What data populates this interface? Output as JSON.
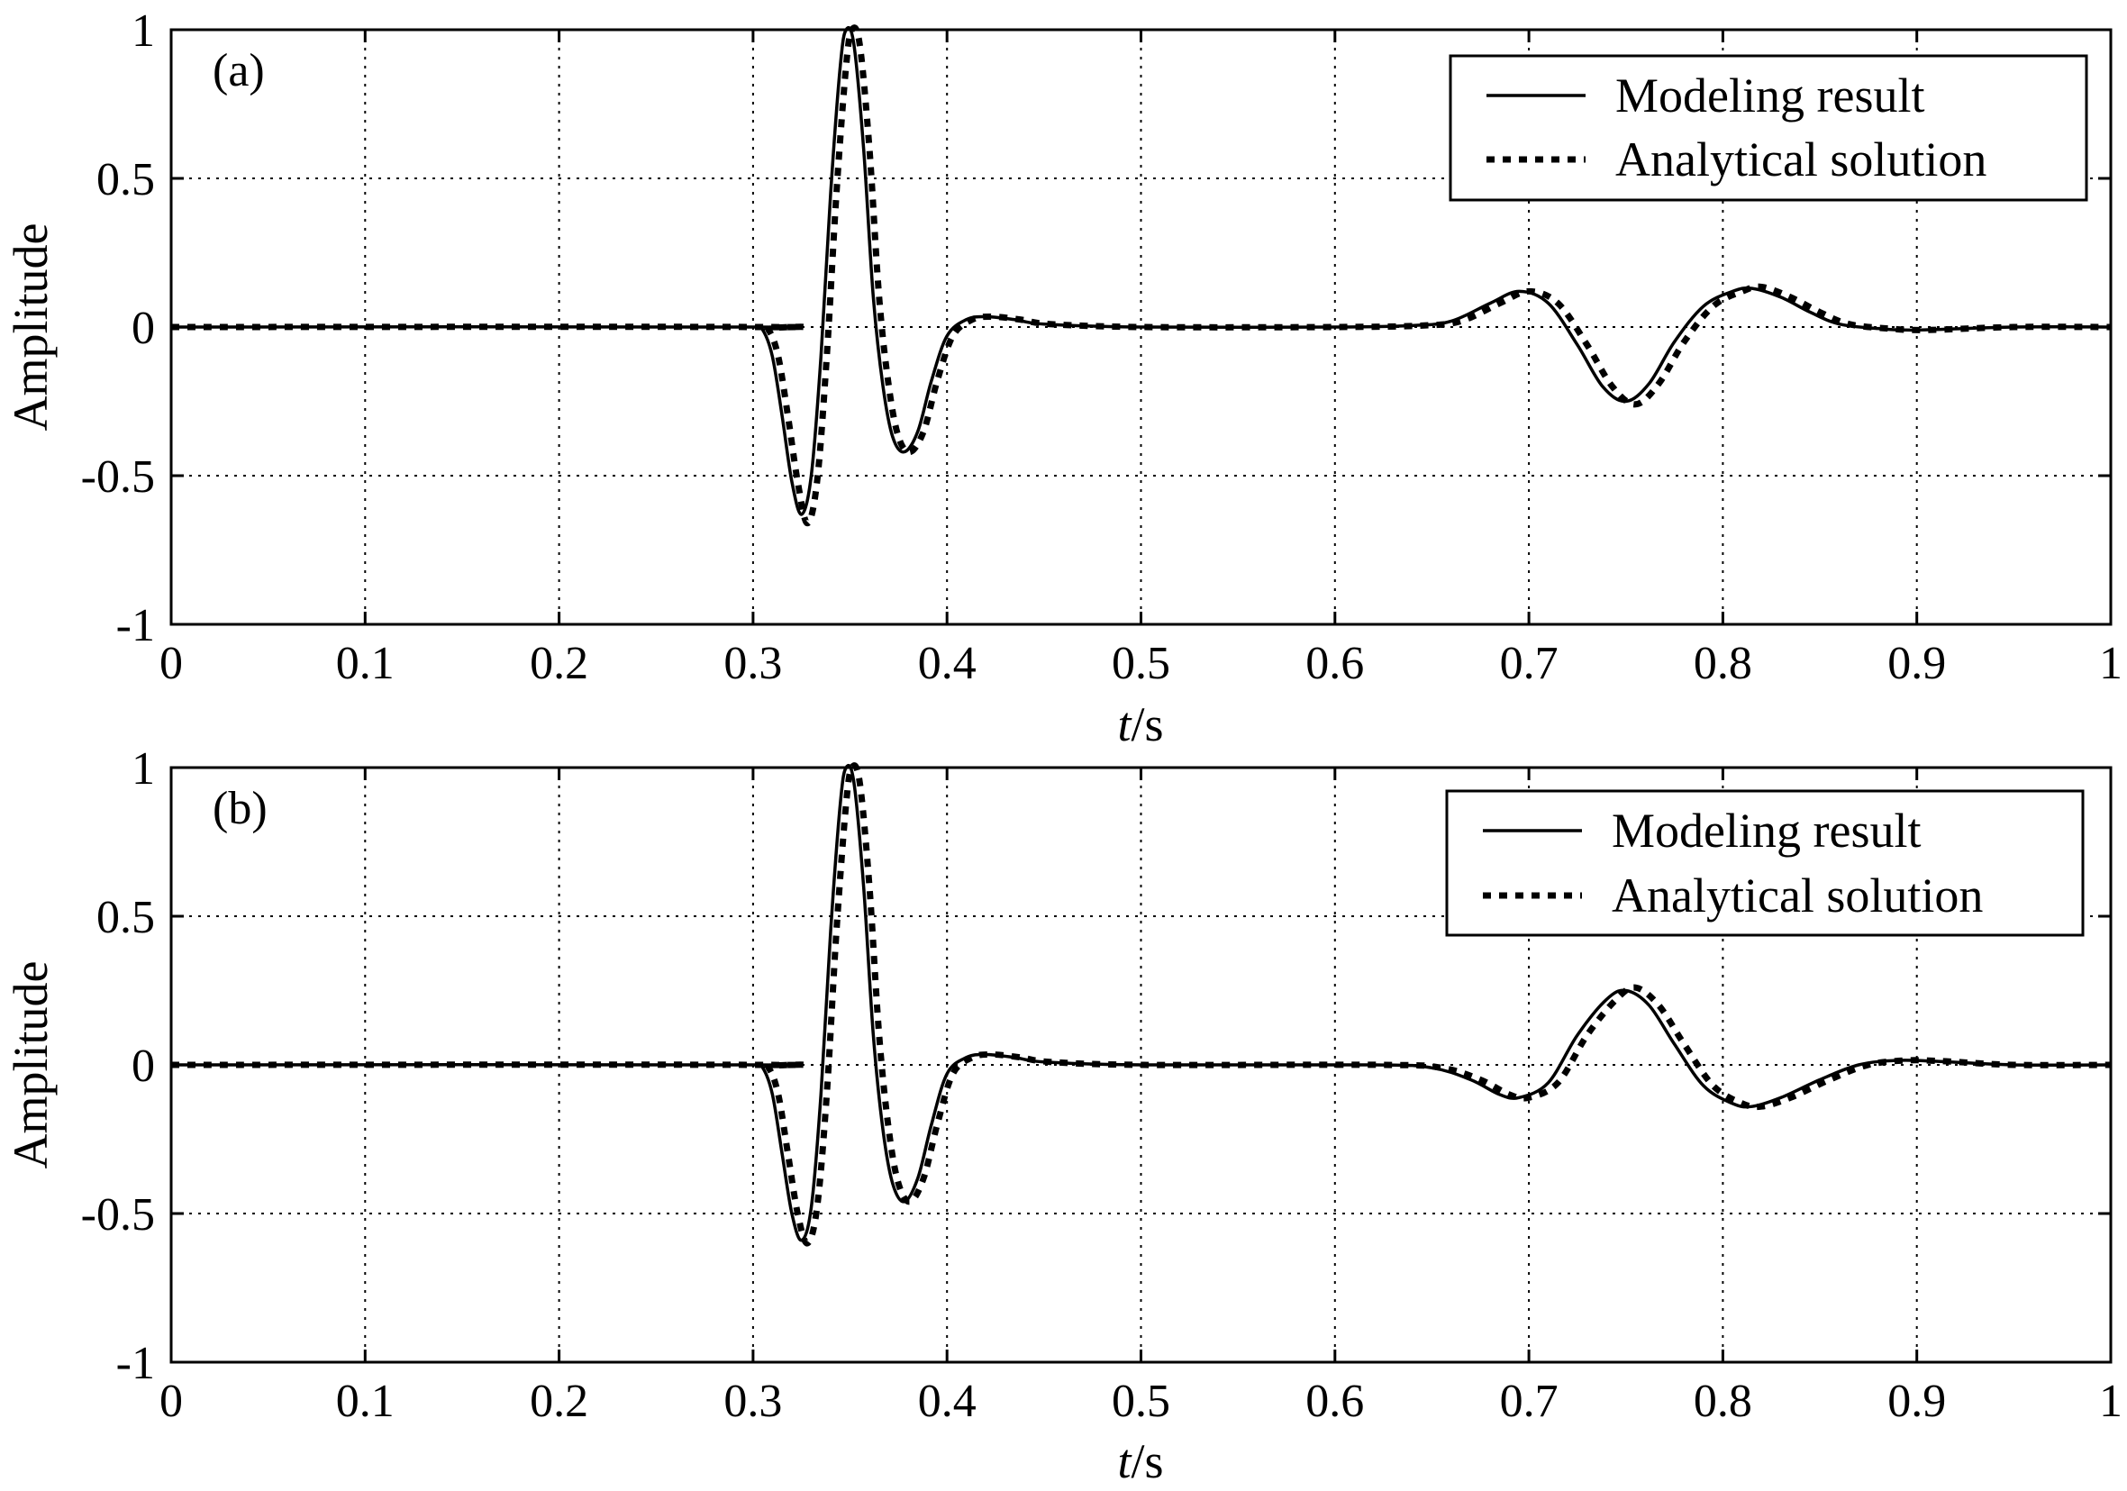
{
  "chart_data": [
    {
      "type": "line",
      "panel_label": "(a)",
      "xlabel_italic": "t",
      "xlabel_unit": "/s",
      "ylabel": "Amplitude",
      "xlim": [
        0,
        1
      ],
      "ylim": [
        -1,
        1
      ],
      "x_ticks": [
        0,
        0.1,
        0.2,
        0.3,
        0.4,
        0.5,
        0.6,
        0.7,
        0.8,
        0.9,
        1
      ],
      "x_tick_labels": [
        "0",
        "0.1",
        "0.2",
        "0.3",
        "0.4",
        "0.5",
        "0.6",
        "0.7",
        "0.8",
        "0.9",
        "1"
      ],
      "y_ticks": [
        -1,
        -0.5,
        0,
        0.5,
        1
      ],
      "y_tick_labels": [
        "-1",
        "-0.5",
        "0",
        "0.5",
        "1"
      ],
      "grid": true,
      "legend_position": "top-right",
      "series": [
        {
          "name": "Modeling result",
          "style": "solid",
          "points": [
            [
              0,
              0
            ],
            [
              0.3,
              0
            ],
            [
              0.305,
              -0.01
            ],
            [
              0.31,
              -0.1
            ],
            [
              0.315,
              -0.3
            ],
            [
              0.32,
              -0.52
            ],
            [
              0.325,
              -0.63
            ],
            [
              0.33,
              -0.5
            ],
            [
              0.335,
              -0.1
            ],
            [
              0.34,
              0.45
            ],
            [
              0.345,
              0.88
            ],
            [
              0.348,
              1.0
            ],
            [
              0.352,
              0.95
            ],
            [
              0.357,
              0.6
            ],
            [
              0.362,
              0.1
            ],
            [
              0.367,
              -0.2
            ],
            [
              0.372,
              -0.37
            ],
            [
              0.378,
              -0.42
            ],
            [
              0.385,
              -0.35
            ],
            [
              0.392,
              -0.18
            ],
            [
              0.4,
              -0.03
            ],
            [
              0.41,
              0.025
            ],
            [
              0.42,
              0.035
            ],
            [
              0.435,
              0.025
            ],
            [
              0.45,
              0.01
            ],
            [
              0.5,
              0
            ],
            [
              0.6,
              0
            ],
            [
              0.64,
              0.005
            ],
            [
              0.66,
              0.02
            ],
            [
              0.68,
              0.08
            ],
            [
              0.695,
              0.12
            ],
            [
              0.71,
              0.08
            ],
            [
              0.725,
              -0.06
            ],
            [
              0.738,
              -0.2
            ],
            [
              0.75,
              -0.25
            ],
            [
              0.762,
              -0.19
            ],
            [
              0.775,
              -0.05
            ],
            [
              0.79,
              0.07
            ],
            [
              0.805,
              0.12
            ],
            [
              0.815,
              0.13
            ],
            [
              0.83,
              0.1
            ],
            [
              0.845,
              0.05
            ],
            [
              0.86,
              0.01
            ],
            [
              0.88,
              -0.005
            ],
            [
              0.9,
              -0.01
            ],
            [
              0.95,
              0
            ],
            [
              1,
              0
            ]
          ]
        },
        {
          "name": "Analytical solution",
          "style": "dotted",
          "points": [
            [
              0,
              0
            ],
            [
              0.302,
              0
            ],
            [
              0.308,
              -0.01
            ],
            [
              0.313,
              -0.1
            ],
            [
              0.318,
              -0.3
            ],
            [
              0.323,
              -0.52
            ],
            [
              0.328,
              -0.66
            ],
            [
              0.333,
              -0.52
            ],
            [
              0.338,
              -0.1
            ],
            [
              0.343,
              0.45
            ],
            [
              0.348,
              0.88
            ],
            [
              0.351,
              1.0
            ],
            [
              0.355,
              0.95
            ],
            [
              0.36,
              0.6
            ],
            [
              0.365,
              0.1
            ],
            [
              0.37,
              -0.2
            ],
            [
              0.375,
              -0.37
            ],
            [
              0.381,
              -0.42
            ],
            [
              0.388,
              -0.35
            ],
            [
              0.395,
              -0.18
            ],
            [
              0.403,
              -0.03
            ],
            [
              0.413,
              0.025
            ],
            [
              0.423,
              0.035
            ],
            [
              0.438,
              0.025
            ],
            [
              0.453,
              0.01
            ],
            [
              0.5,
              0
            ],
            [
              0.6,
              0
            ],
            [
              0.645,
              0.005
            ],
            [
              0.665,
              0.02
            ],
            [
              0.685,
              0.08
            ],
            [
              0.7,
              0.12
            ],
            [
              0.715,
              0.08
            ],
            [
              0.73,
              -0.06
            ],
            [
              0.743,
              -0.2
            ],
            [
              0.755,
              -0.26
            ],
            [
              0.767,
              -0.19
            ],
            [
              0.78,
              -0.05
            ],
            [
              0.795,
              0.07
            ],
            [
              0.81,
              0.12
            ],
            [
              0.82,
              0.135
            ],
            [
              0.835,
              0.1
            ],
            [
              0.85,
              0.05
            ],
            [
              0.865,
              0.01
            ],
            [
              0.885,
              -0.005
            ],
            [
              0.905,
              -0.01
            ],
            [
              0.95,
              0
            ],
            [
              1,
              0
            ]
          ]
        }
      ]
    },
    {
      "type": "line",
      "panel_label": "(b)",
      "xlabel_italic": "t",
      "xlabel_unit": "/s",
      "ylabel": "Amplitude",
      "xlim": [
        0,
        1
      ],
      "ylim": [
        -1,
        1
      ],
      "x_ticks": [
        0,
        0.1,
        0.2,
        0.3,
        0.4,
        0.5,
        0.6,
        0.7,
        0.8,
        0.9,
        1
      ],
      "x_tick_labels": [
        "0",
        "0.1",
        "0.2",
        "0.3",
        "0.4",
        "0.5",
        "0.6",
        "0.7",
        "0.8",
        "0.9",
        "1"
      ],
      "y_ticks": [
        -1,
        -0.5,
        0,
        0.5,
        1
      ],
      "y_tick_labels": [
        "-1",
        "-0.5",
        "0",
        "0.5",
        "1"
      ],
      "grid": true,
      "legend_position": "top-right",
      "series": [
        {
          "name": "Modeling result",
          "style": "solid",
          "points": [
            [
              0,
              0
            ],
            [
              0.3,
              0
            ],
            [
              0.305,
              -0.01
            ],
            [
              0.31,
              -0.1
            ],
            [
              0.315,
              -0.3
            ],
            [
              0.32,
              -0.5
            ],
            [
              0.325,
              -0.59
            ],
            [
              0.33,
              -0.48
            ],
            [
              0.335,
              -0.1
            ],
            [
              0.34,
              0.45
            ],
            [
              0.345,
              0.88
            ],
            [
              0.348,
              1.0
            ],
            [
              0.352,
              0.95
            ],
            [
              0.357,
              0.6
            ],
            [
              0.362,
              0.1
            ],
            [
              0.367,
              -0.22
            ],
            [
              0.372,
              -0.4
            ],
            [
              0.378,
              -0.46
            ],
            [
              0.385,
              -0.38
            ],
            [
              0.392,
              -0.2
            ],
            [
              0.4,
              -0.03
            ],
            [
              0.41,
              0.025
            ],
            [
              0.42,
              0.035
            ],
            [
              0.435,
              0.025
            ],
            [
              0.45,
              0.01
            ],
            [
              0.5,
              0
            ],
            [
              0.62,
              0
            ],
            [
              0.65,
              -0.01
            ],
            [
              0.67,
              -0.05
            ],
            [
              0.685,
              -0.1
            ],
            [
              0.695,
              -0.11
            ],
            [
              0.71,
              -0.06
            ],
            [
              0.725,
              0.1
            ],
            [
              0.74,
              0.22
            ],
            [
              0.75,
              0.25
            ],
            [
              0.762,
              0.2
            ],
            [
              0.775,
              0.07
            ],
            [
              0.79,
              -0.07
            ],
            [
              0.805,
              -0.13
            ],
            [
              0.815,
              -0.14
            ],
            [
              0.83,
              -0.11
            ],
            [
              0.85,
              -0.05
            ],
            [
              0.87,
              0
            ],
            [
              0.89,
              0.015
            ],
            [
              0.91,
              0.012
            ],
            [
              0.95,
              0
            ],
            [
              1,
              0
            ]
          ]
        },
        {
          "name": "Analytical solution",
          "style": "dotted",
          "points": [
            [
              0,
              0
            ],
            [
              0.302,
              0
            ],
            [
              0.308,
              -0.01
            ],
            [
              0.313,
              -0.1
            ],
            [
              0.318,
              -0.3
            ],
            [
              0.323,
              -0.5
            ],
            [
              0.328,
              -0.6
            ],
            [
              0.333,
              -0.48
            ],
            [
              0.338,
              -0.1
            ],
            [
              0.343,
              0.45
            ],
            [
              0.348,
              0.88
            ],
            [
              0.351,
              1.0
            ],
            [
              0.355,
              0.95
            ],
            [
              0.36,
              0.6
            ],
            [
              0.365,
              0.1
            ],
            [
              0.37,
              -0.22
            ],
            [
              0.375,
              -0.4
            ],
            [
              0.381,
              -0.46
            ],
            [
              0.388,
              -0.38
            ],
            [
              0.395,
              -0.2
            ],
            [
              0.403,
              -0.03
            ],
            [
              0.413,
              0.025
            ],
            [
              0.423,
              0.035
            ],
            [
              0.438,
              0.025
            ],
            [
              0.453,
              0.01
            ],
            [
              0.5,
              0
            ],
            [
              0.625,
              0
            ],
            [
              0.655,
              -0.01
            ],
            [
              0.675,
              -0.05
            ],
            [
              0.69,
              -0.1
            ],
            [
              0.7,
              -0.11
            ],
            [
              0.715,
              -0.06
            ],
            [
              0.73,
              0.1
            ],
            [
              0.745,
              0.22
            ],
            [
              0.755,
              0.26
            ],
            [
              0.767,
              0.2
            ],
            [
              0.78,
              0.07
            ],
            [
              0.795,
              -0.07
            ],
            [
              0.81,
              -0.13
            ],
            [
              0.82,
              -0.14
            ],
            [
              0.835,
              -0.11
            ],
            [
              0.855,
              -0.05
            ],
            [
              0.875,
              0
            ],
            [
              0.895,
              0.015
            ],
            [
              0.915,
              0.012
            ],
            [
              0.95,
              0
            ],
            [
              1,
              0
            ]
          ]
        }
      ]
    }
  ]
}
